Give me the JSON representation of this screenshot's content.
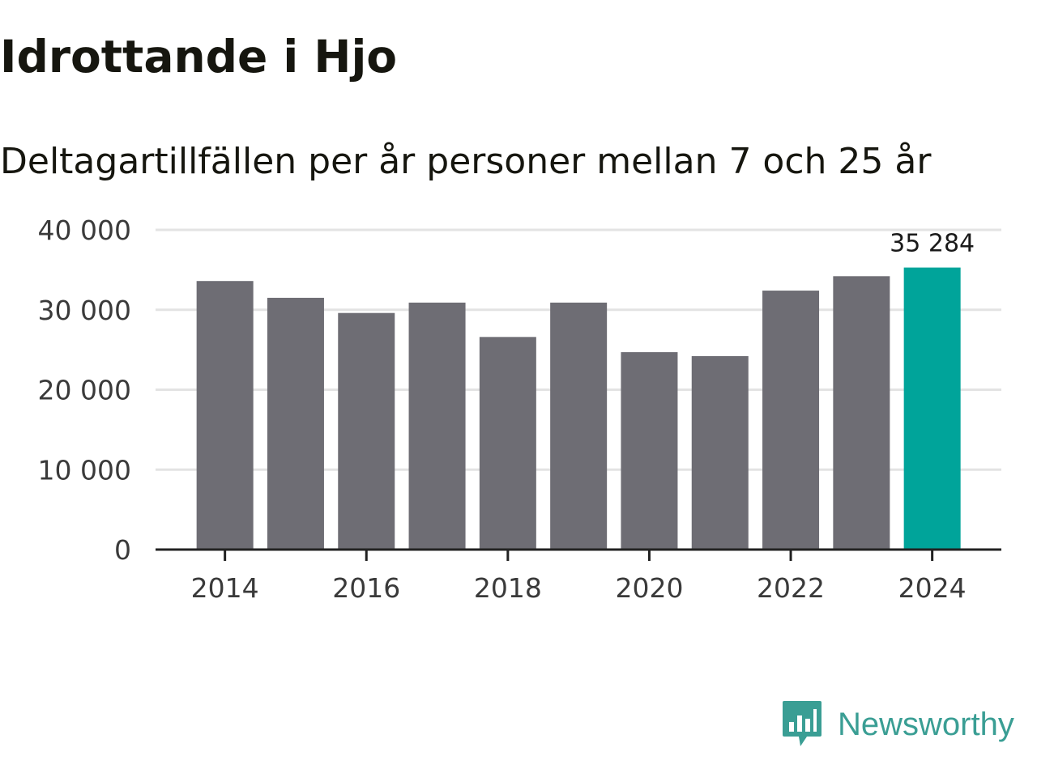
{
  "title": "Idrottande i Hjo",
  "subtitle": "Deltagartillfällen per år personer mellan 7 och 25 år",
  "colors": {
    "bar": "#6e6d74",
    "highlight": "#00a49a",
    "grid": "#e3e3e3",
    "axis": "#222222",
    "logo": "#3a9e94"
  },
  "logo": {
    "text": "Newsworthy",
    "icon": "chart-bubble-icon"
  },
  "chart_data": {
    "type": "bar",
    "title": "Idrottande i Hjo",
    "subtitle": "Deltagartillfällen per år personer mellan 7 och 25 år",
    "xlabel": "",
    "ylabel": "",
    "categories": [
      "2014",
      "2015",
      "2016",
      "2017",
      "2018",
      "2019",
      "2020",
      "2021",
      "2022",
      "2023",
      "2024"
    ],
    "values": [
      33600,
      31500,
      29600,
      30900,
      26600,
      30900,
      24700,
      24200,
      32400,
      34200,
      35284
    ],
    "highlight_index": 10,
    "data_label": {
      "index": 10,
      "text": "35 284"
    },
    "ylim": [
      0,
      40000
    ],
    "yticks": [
      0,
      10000,
      20000,
      30000,
      40000
    ],
    "ytick_labels": [
      "0",
      "10 000",
      "20 000",
      "30 000",
      "40 000"
    ],
    "xtick_labels": [
      "2014",
      "2016",
      "2018",
      "2020",
      "2022",
      "2024"
    ],
    "grid": true
  }
}
